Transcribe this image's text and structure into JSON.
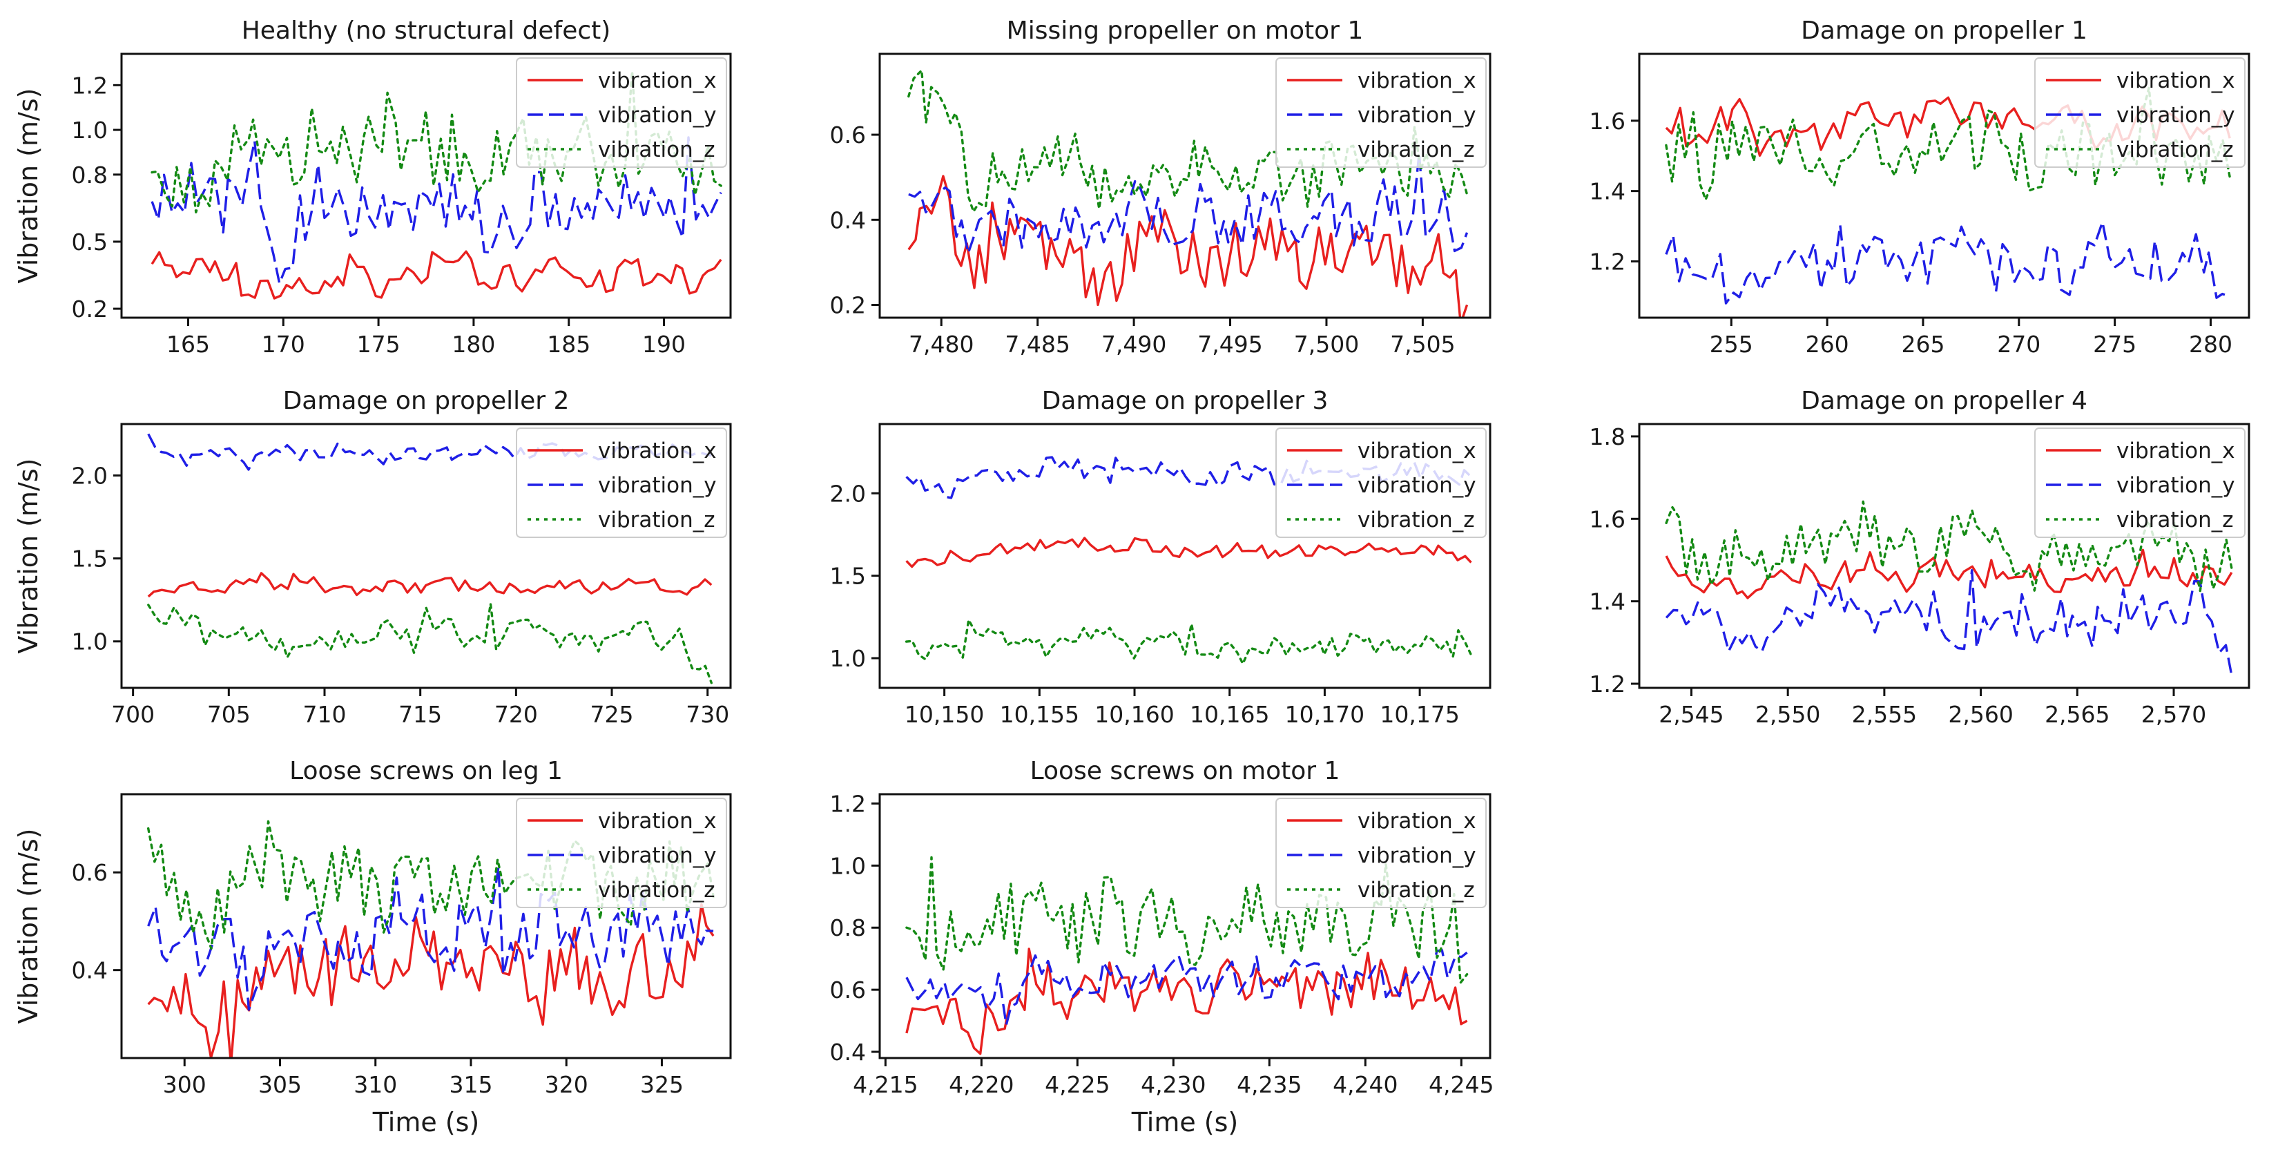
{
  "figure": {
    "legend_labels": [
      "vibration_x",
      "vibration_y",
      "vibration_z"
    ],
    "series_colors": {
      "vibration_x": "#e8201f",
      "vibration_y": "#1f1fe6",
      "vibration_z": "#148a14"
    },
    "ylabel": "Vibration (m/s)",
    "xlabel": "Time (s)"
  },
  "chart_data": [
    {
      "type": "line",
      "title": "Healthy (no structural defect)",
      "xlim": [
        161.5,
        193.5
      ],
      "ylim": [
        0.16,
        1.34
      ],
      "xticks": [
        165,
        170,
        175,
        180,
        185,
        190
      ],
      "xtick_labels": [
        "165",
        "170",
        "175",
        "180",
        "185",
        "190"
      ],
      "yticks": [
        0.2,
        0.5,
        0.8,
        1.0,
        1.2
      ],
      "ytick_labels": [
        "0.2",
        "0.5",
        "0.8",
        "1.0",
        "1.2"
      ],
      "xlabel": "",
      "ylabel": "Vibration (m/s)",
      "n_points": 90,
      "x_start": 163.1,
      "x_end": 193.0,
      "series": [
        {
          "name": "vibration_x",
          "mean": 0.33,
          "spread": 0.07,
          "anchors": [
            0.4,
            0.4,
            0.37,
            0.3,
            0.26,
            0.33,
            0.38,
            0.3,
            0.35,
            0.42,
            0.33,
            0.34,
            0.38,
            0.33,
            0.35,
            0.37,
            0.32,
            0.42
          ]
        },
        {
          "name": "vibration_y",
          "mean": 0.64,
          "spread": 0.15,
          "anchors": [
            0.68,
            0.74,
            0.66,
            0.84,
            0.36,
            0.72,
            0.62,
            0.7,
            0.6,
            0.66,
            0.58,
            0.62,
            0.7,
            0.6,
            0.66,
            0.6,
            0.64,
            0.72
          ]
        },
        {
          "name": "vibration_z",
          "mean": 0.85,
          "spread": 0.16,
          "anchors": [
            0.81,
            0.82,
            0.7,
            0.92,
            0.86,
            0.98,
            0.8,
            1.05,
            0.82,
            0.95,
            0.85,
            1.0,
            0.8,
            0.92,
            0.85,
            0.9,
            0.82,
            0.75
          ]
        }
      ]
    },
    {
      "type": "line",
      "title": "Missing propeller on motor 1",
      "xlim": [
        7476.8,
        7508.5
      ],
      "ylim": [
        0.17,
        0.79
      ],
      "xticks": [
        7480,
        7485,
        7490,
        7495,
        7500,
        7505
      ],
      "xtick_labels": [
        "7,480",
        "7,485",
        "7,490",
        "7,495",
        "7,500",
        "7,505"
      ],
      "yticks": [
        0.2,
        0.4,
        0.6
      ],
      "ytick_labels": [
        "0.2",
        "0.4",
        "0.6"
      ],
      "xlabel": "",
      "ylabel": "",
      "n_points": 95,
      "x_start": 7478.3,
      "x_end": 7507.3,
      "series": [
        {
          "name": "vibration_x",
          "mean": 0.32,
          "spread": 0.07,
          "anchors": [
            0.33,
            0.45,
            0.3,
            0.36,
            0.33,
            0.3,
            0.25,
            0.33,
            0.36,
            0.3,
            0.33,
            0.35,
            0.3,
            0.32,
            0.33,
            0.29,
            0.32,
            0.2
          ]
        },
        {
          "name": "vibration_y",
          "mean": 0.4,
          "spread": 0.07,
          "anchors": [
            0.46,
            0.45,
            0.36,
            0.38,
            0.42,
            0.4,
            0.34,
            0.44,
            0.4,
            0.42,
            0.38,
            0.44,
            0.4,
            0.43,
            0.38,
            0.42,
            0.4,
            0.37
          ]
        },
        {
          "name": "vibration_z",
          "mean": 0.5,
          "spread": 0.07,
          "anchors": [
            0.69,
            0.7,
            0.45,
            0.52,
            0.5,
            0.55,
            0.48,
            0.53,
            0.47,
            0.55,
            0.5,
            0.52,
            0.48,
            0.53,
            0.5,
            0.49,
            0.52,
            0.46
          ]
        }
      ]
    },
    {
      "type": "line",
      "title": "Damage on propeller 1",
      "xlim": [
        250.2,
        282.0
      ],
      "ylim": [
        1.04,
        1.79
      ],
      "xticks": [
        255,
        260,
        265,
        270,
        275,
        280
      ],
      "xtick_labels": [
        "255",
        "260",
        "265",
        "270",
        "275",
        "280"
      ],
      "yticks": [
        1.2,
        1.4,
        1.6
      ],
      "ytick_labels": [
        "1.2",
        "1.4",
        "1.6"
      ],
      "xlabel": "",
      "ylabel": "",
      "n_points": 85,
      "x_start": 251.6,
      "x_end": 281.0,
      "series": [
        {
          "name": "vibration_x",
          "mean": 1.58,
          "spread": 0.05,
          "anchors": [
            1.58,
            1.53,
            1.64,
            1.52,
            1.6,
            1.56,
            1.62,
            1.58,
            1.64,
            1.6,
            1.62,
            1.58,
            1.6,
            1.56,
            1.6,
            1.58,
            1.56,
            1.55
          ]
        },
        {
          "name": "vibration_y",
          "mean": 1.19,
          "spread": 0.07,
          "anchors": [
            1.22,
            1.2,
            1.13,
            1.18,
            1.22,
            1.16,
            1.24,
            1.18,
            1.2,
            1.24,
            1.18,
            1.22,
            1.16,
            1.2,
            1.22,
            1.18,
            1.24,
            1.1
          ]
        },
        {
          "name": "vibration_z",
          "mean": 1.52,
          "spread": 0.09,
          "anchors": [
            1.53,
            1.4,
            1.6,
            1.5,
            1.55,
            1.48,
            1.55,
            1.5,
            1.58,
            1.52,
            1.56,
            1.48,
            1.54,
            1.5,
            1.55,
            1.5,
            1.52,
            1.44
          ]
        }
      ]
    },
    {
      "type": "line",
      "title": "Damage on propeller 2",
      "xlim": [
        699.4,
        731.2
      ],
      "ylim": [
        0.72,
        2.31
      ],
      "xticks": [
        700,
        705,
        710,
        715,
        720,
        725,
        730
      ],
      "xtick_labels": [
        "700",
        "705",
        "710",
        "715",
        "720",
        "725",
        "730"
      ],
      "yticks": [
        1.0,
        1.5,
        2.0
      ],
      "ytick_labels": [
        "1.0",
        "1.5",
        "2.0"
      ],
      "xlabel": "",
      "ylabel": "Vibration (m/s)",
      "n_points": 90,
      "x_start": 700.8,
      "x_end": 730.2,
      "series": [
        {
          "name": "vibration_x",
          "mean": 1.33,
          "spread": 0.04,
          "anchors": [
            1.27,
            1.33,
            1.3,
            1.36,
            1.32,
            1.35,
            1.3,
            1.34,
            1.32,
            1.36,
            1.3,
            1.34,
            1.32,
            1.35,
            1.33,
            1.36,
            1.31,
            1.34
          ]
        },
        {
          "name": "vibration_y",
          "mean": 2.14,
          "spread": 0.05,
          "anchors": [
            2.25,
            2.08,
            2.15,
            2.1,
            2.16,
            2.12,
            2.18,
            2.1,
            2.15,
            2.12,
            2.16,
            2.12,
            2.18,
            2.14,
            2.12,
            2.16,
            2.14,
            2.12
          ]
        },
        {
          "name": "vibration_z",
          "mean": 1.05,
          "spread": 0.09,
          "anchors": [
            1.22,
            1.1,
            1.05,
            1.02,
            0.98,
            1.05,
            1.0,
            1.08,
            1.02,
            1.06,
            1.0,
            1.08,
            1.02,
            1.06,
            1.0,
            1.05,
            1.02,
            0.75
          ]
        }
      ]
    },
    {
      "type": "line",
      "title": "Damage on propeller 3",
      "xlim": [
        10146.6,
        10178.7
      ],
      "ylim": [
        0.82,
        2.42
      ],
      "xticks": [
        10150,
        10155,
        10160,
        10165,
        10170,
        10175
      ],
      "xtick_labels": [
        "10,150",
        "10,155",
        "10,160",
        "10,165",
        "10,170",
        "10,175"
      ],
      "yticks": [
        1.0,
        1.5,
        2.0
      ],
      "ytick_labels": [
        "1.0",
        "1.5",
        "2.0"
      ],
      "xlabel": "",
      "ylabel": "",
      "n_points": 90,
      "x_start": 10148.0,
      "x_end": 10177.7,
      "series": [
        {
          "name": "vibration_x",
          "mean": 1.65,
          "spread": 0.04,
          "anchors": [
            1.59,
            1.61,
            1.62,
            1.66,
            1.68,
            1.7,
            1.67,
            1.7,
            1.65,
            1.64,
            1.66,
            1.62,
            1.66,
            1.64,
            1.66,
            1.64,
            1.65,
            1.58
          ]
        },
        {
          "name": "vibration_y",
          "mean": 2.12,
          "spread": 0.06,
          "anchors": [
            2.1,
            2.0,
            2.08,
            2.12,
            2.15,
            2.18,
            2.1,
            2.15,
            2.12,
            2.08,
            2.15,
            2.1,
            2.14,
            2.12,
            2.1,
            2.14,
            2.12,
            2.1
          ]
        },
        {
          "name": "vibration_z",
          "mean": 1.08,
          "spread": 0.07,
          "anchors": [
            1.1,
            1.02,
            1.08,
            1.12,
            1.05,
            1.1,
            1.15,
            1.05,
            1.1,
            1.08,
            1.02,
            1.1,
            1.05,
            1.08,
            1.1,
            1.05,
            1.08,
            1.02
          ]
        }
      ]
    },
    {
      "type": "line",
      "title": "Damage on propeller 4",
      "xlim": [
        2542.3,
        2573.9
      ],
      "ylim": [
        1.19,
        1.83
      ],
      "xticks": [
        2545,
        2550,
        2555,
        2560,
        2565,
        2570
      ],
      "xtick_labels": [
        "2,545",
        "2,550",
        "2,555",
        "2,560",
        "2,565",
        "2,570"
      ],
      "yticks": [
        1.2,
        1.4,
        1.6,
        1.8
      ],
      "ytick_labels": [
        "1.2",
        "1.4",
        "1.6",
        "1.8"
      ],
      "xlabel": "",
      "ylabel": "",
      "n_points": 90,
      "x_start": 2543.7,
      "x_end": 2573.0,
      "series": [
        {
          "name": "vibration_x",
          "mean": 1.46,
          "spread": 0.03,
          "anchors": [
            1.51,
            1.43,
            1.43,
            1.43,
            1.47,
            1.45,
            1.5,
            1.44,
            1.48,
            1.46,
            1.45,
            1.47,
            1.44,
            1.48,
            1.46,
            1.47,
            1.45,
            1.47
          ]
        },
        {
          "name": "vibration_y",
          "mean": 1.36,
          "spread": 0.06,
          "anchors": [
            1.36,
            1.39,
            1.35,
            1.32,
            1.38,
            1.4,
            1.33,
            1.36,
            1.38,
            1.32,
            1.38,
            1.35,
            1.37,
            1.34,
            1.38,
            1.36,
            1.4,
            1.22
          ]
        },
        {
          "name": "vibration_z",
          "mean": 1.52,
          "spread": 0.07,
          "anchors": [
            1.59,
            1.48,
            1.52,
            1.46,
            1.55,
            1.5,
            1.58,
            1.52,
            1.5,
            1.56,
            1.52,
            1.48,
            1.54,
            1.52,
            1.5,
            1.55,
            1.5,
            1.48
          ]
        }
      ]
    },
    {
      "type": "line",
      "title": "Loose screws on leg 1",
      "xlim": [
        296.7,
        328.6
      ],
      "ylim": [
        0.22,
        0.76
      ],
      "xticks": [
        300,
        305,
        310,
        315,
        320,
        325
      ],
      "xtick_labels": [
        "300",
        "305",
        "310",
        "315",
        "320",
        "325"
      ],
      "yticks": [
        0.4,
        0.6
      ],
      "ytick_labels": [
        "0.4",
        "0.6"
      ],
      "xlabel": "Time (s)",
      "ylabel": "Vibration (m/s)",
      "n_points": 90,
      "x_start": 298.1,
      "x_end": 327.7,
      "series": [
        {
          "name": "vibration_x",
          "mean": 0.4,
          "spread": 0.08,
          "anchors": [
            0.33,
            0.35,
            0.28,
            0.36,
            0.46,
            0.38,
            0.42,
            0.36,
            0.44,
            0.38,
            0.42,
            0.4,
            0.36,
            0.42,
            0.38,
            0.4,
            0.44,
            0.47
          ]
        },
        {
          "name": "vibration_y",
          "mean": 0.47,
          "spread": 0.07,
          "anchors": [
            0.49,
            0.41,
            0.5,
            0.38,
            0.52,
            0.45,
            0.48,
            0.44,
            0.5,
            0.46,
            0.48,
            0.44,
            0.5,
            0.46,
            0.48,
            0.5,
            0.46,
            0.48
          ]
        },
        {
          "name": "vibration_z",
          "mean": 0.57,
          "spread": 0.07,
          "anchors": [
            0.69,
            0.55,
            0.5,
            0.6,
            0.62,
            0.56,
            0.6,
            0.54,
            0.62,
            0.56,
            0.6,
            0.55,
            0.58,
            0.6,
            0.54,
            0.58,
            0.6,
            0.55
          ]
        }
      ]
    },
    {
      "type": "line",
      "title": "Loose screws on motor 1",
      "xlim": [
        4214.7,
        4246.5
      ],
      "ylim": [
        0.38,
        1.23
      ],
      "xticks": [
        4215,
        4220,
        4225,
        4230,
        4235,
        4240,
        4245
      ],
      "xtick_labels": [
        "4,215",
        "4,220",
        "4,225",
        "4,230",
        "4,235",
        "4,240",
        "4,245"
      ],
      "yticks": [
        0.4,
        0.6,
        0.8,
        1.0,
        1.2
      ],
      "ytick_labels": [
        "0.4",
        "0.6",
        "0.8",
        "1.0",
        "1.2"
      ],
      "xlabel": "Time (s)",
      "ylabel": "",
      "n_points": 92,
      "x_start": 4216.1,
      "x_end": 4245.3,
      "series": [
        {
          "name": "vibration_x",
          "mean": 0.62,
          "spread": 0.08,
          "anchors": [
            0.46,
            0.58,
            0.47,
            0.48,
            0.62,
            0.58,
            0.65,
            0.6,
            0.62,
            0.58,
            0.64,
            0.6,
            0.62,
            0.58,
            0.64,
            0.6,
            0.62,
            0.5
          ]
        },
        {
          "name": "vibration_y",
          "mean": 0.63,
          "spread": 0.06,
          "anchors": [
            0.64,
            0.6,
            0.58,
            0.55,
            0.66,
            0.62,
            0.64,
            0.6,
            0.66,
            0.62,
            0.64,
            0.6,
            0.66,
            0.62,
            0.64,
            0.6,
            0.66,
            0.72
          ]
        },
        {
          "name": "vibration_z",
          "mean": 0.82,
          "spread": 0.12,
          "anchors": [
            0.8,
            0.78,
            0.77,
            0.8,
            0.85,
            0.78,
            0.88,
            0.8,
            0.84,
            0.78,
            0.86,
            0.8,
            0.84,
            0.78,
            0.86,
            0.8,
            0.82,
            0.65
          ]
        }
      ]
    }
  ]
}
